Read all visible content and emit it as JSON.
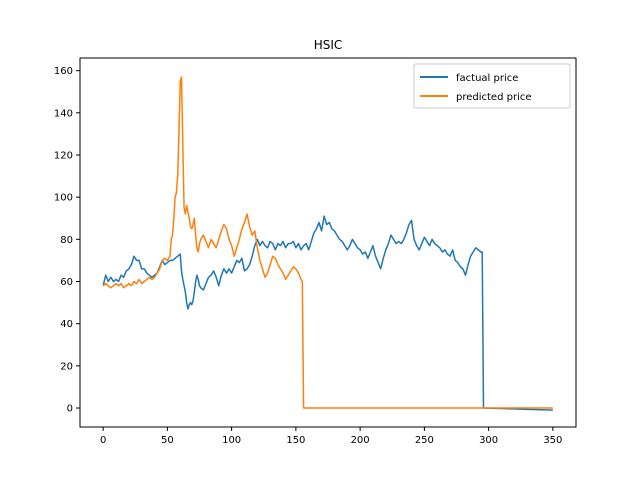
{
  "chart_data": {
    "type": "line",
    "title": "HSIC",
    "xlabel": "",
    "ylabel": "",
    "xlim": [
      -18,
      368
    ],
    "ylim": [
      -9,
      166
    ],
    "xticks": [
      0,
      50,
      100,
      150,
      200,
      250,
      300,
      350
    ],
    "yticks": [
      0,
      20,
      40,
      60,
      80,
      100,
      120,
      140,
      160
    ],
    "grid": false,
    "legend_position": "top-right",
    "series": [
      {
        "name": "factual price",
        "color": "#1f77b4",
        "points": [
          [
            0,
            58
          ],
          [
            2,
            63
          ],
          [
            4,
            60
          ],
          [
            6,
            62
          ],
          [
            8,
            60
          ],
          [
            10,
            61
          ],
          [
            12,
            60
          ],
          [
            14,
            63
          ],
          [
            16,
            62
          ],
          [
            18,
            65
          ],
          [
            20,
            66
          ],
          [
            22,
            68
          ],
          [
            24,
            72
          ],
          [
            26,
            70
          ],
          [
            28,
            70
          ],
          [
            30,
            66
          ],
          [
            32,
            66
          ],
          [
            34,
            64
          ],
          [
            36,
            63
          ],
          [
            38,
            62
          ],
          [
            40,
            63
          ],
          [
            42,
            64
          ],
          [
            44,
            67
          ],
          [
            46,
            70
          ],
          [
            48,
            68
          ],
          [
            50,
            69
          ],
          [
            52,
            70
          ],
          [
            54,
            70
          ],
          [
            56,
            71
          ],
          [
            58,
            72
          ],
          [
            60,
            73
          ],
          [
            61,
            65
          ],
          [
            62,
            61
          ],
          [
            63,
            58
          ],
          [
            64,
            55
          ],
          [
            65,
            50
          ],
          [
            66,
            47
          ],
          [
            67,
            49
          ],
          [
            68,
            50
          ],
          [
            69,
            49
          ],
          [
            70,
            51
          ],
          [
            71,
            55
          ],
          [
            72,
            60
          ],
          [
            73,
            63
          ],
          [
            74,
            61
          ],
          [
            75,
            58
          ],
          [
            76,
            57
          ],
          [
            78,
            56
          ],
          [
            80,
            59
          ],
          [
            82,
            62
          ],
          [
            84,
            63
          ],
          [
            86,
            65
          ],
          [
            88,
            62
          ],
          [
            90,
            58
          ],
          [
            92,
            63
          ],
          [
            94,
            66
          ],
          [
            96,
            64
          ],
          [
            98,
            66
          ],
          [
            100,
            64
          ],
          [
            102,
            67
          ],
          [
            104,
            70
          ],
          [
            106,
            69
          ],
          [
            108,
            71
          ],
          [
            110,
            65
          ],
          [
            112,
            66
          ],
          [
            114,
            68
          ],
          [
            116,
            72
          ],
          [
            118,
            77
          ],
          [
            120,
            80
          ],
          [
            122,
            77
          ],
          [
            124,
            79
          ],
          [
            126,
            77
          ],
          [
            128,
            76
          ],
          [
            130,
            79
          ],
          [
            132,
            78
          ],
          [
            134,
            75
          ],
          [
            136,
            78
          ],
          [
            138,
            77
          ],
          [
            140,
            79
          ],
          [
            142,
            76
          ],
          [
            144,
            78
          ],
          [
            146,
            78
          ],
          [
            148,
            79
          ],
          [
            150,
            76
          ],
          [
            152,
            78
          ],
          [
            154,
            75
          ],
          [
            156,
            77
          ],
          [
            158,
            78
          ],
          [
            160,
            75
          ],
          [
            162,
            79
          ],
          [
            164,
            83
          ],
          [
            166,
            85
          ],
          [
            168,
            88
          ],
          [
            170,
            84
          ],
          [
            172,
            91
          ],
          [
            174,
            87
          ],
          [
            176,
            88
          ],
          [
            178,
            85
          ],
          [
            180,
            84
          ],
          [
            182,
            82
          ],
          [
            184,
            80
          ],
          [
            186,
            79
          ],
          [
            188,
            77
          ],
          [
            190,
            75
          ],
          [
            192,
            77
          ],
          [
            194,
            80
          ],
          [
            196,
            78
          ],
          [
            198,
            76
          ],
          [
            200,
            75
          ],
          [
            202,
            73
          ],
          [
            204,
            74
          ],
          [
            206,
            71
          ],
          [
            208,
            74
          ],
          [
            210,
            77
          ],
          [
            212,
            72
          ],
          [
            214,
            69
          ],
          [
            216,
            66
          ],
          [
            218,
            71
          ],
          [
            220,
            75
          ],
          [
            222,
            78
          ],
          [
            224,
            82
          ],
          [
            226,
            80
          ],
          [
            228,
            78
          ],
          [
            230,
            79
          ],
          [
            232,
            78
          ],
          [
            234,
            80
          ],
          [
            236,
            83
          ],
          [
            238,
            87
          ],
          [
            240,
            89
          ],
          [
            242,
            80
          ],
          [
            244,
            77
          ],
          [
            246,
            75
          ],
          [
            248,
            78
          ],
          [
            250,
            81
          ],
          [
            252,
            79
          ],
          [
            254,
            77
          ],
          [
            256,
            80
          ],
          [
            258,
            78
          ],
          [
            260,
            77
          ],
          [
            262,
            76
          ],
          [
            264,
            74
          ],
          [
            266,
            75
          ],
          [
            268,
            73
          ],
          [
            270,
            72
          ],
          [
            272,
            75
          ],
          [
            274,
            70
          ],
          [
            276,
            69
          ],
          [
            278,
            67
          ],
          [
            280,
            66
          ],
          [
            282,
            63
          ],
          [
            284,
            68
          ],
          [
            286,
            72
          ],
          [
            288,
            74
          ],
          [
            290,
            76
          ],
          [
            292,
            75
          ],
          [
            294,
            74
          ],
          [
            295,
            74
          ],
          [
            296,
            0
          ],
          [
            350,
            -1
          ]
        ]
      },
      {
        "name": "predicted price",
        "color": "#ff7f0e",
        "points": [
          [
            0,
            58
          ],
          [
            2,
            59
          ],
          [
            4,
            58
          ],
          [
            6,
            57
          ],
          [
            8,
            58
          ],
          [
            10,
            59
          ],
          [
            12,
            58
          ],
          [
            14,
            59
          ],
          [
            16,
            57
          ],
          [
            18,
            58
          ],
          [
            20,
            59
          ],
          [
            22,
            58
          ],
          [
            24,
            60
          ],
          [
            26,
            59
          ],
          [
            28,
            61
          ],
          [
            30,
            59
          ],
          [
            32,
            60
          ],
          [
            34,
            61
          ],
          [
            36,
            62
          ],
          [
            38,
            61
          ],
          [
            40,
            62
          ],
          [
            42,
            64
          ],
          [
            44,
            66
          ],
          [
            46,
            70
          ],
          [
            48,
            71
          ],
          [
            50,
            70
          ],
          [
            52,
            72
          ],
          [
            53,
            80
          ],
          [
            54,
            82
          ],
          [
            55,
            90
          ],
          [
            56,
            100
          ],
          [
            57,
            102
          ],
          [
            58,
            110
          ],
          [
            59,
            130
          ],
          [
            60,
            155
          ],
          [
            61,
            157
          ],
          [
            62,
            125
          ],
          [
            63,
            95
          ],
          [
            64,
            92
          ],
          [
            65,
            96
          ],
          [
            66,
            93
          ],
          [
            67,
            90
          ],
          [
            68,
            86
          ],
          [
            69,
            85
          ],
          [
            70,
            87
          ],
          [
            71,
            90
          ],
          [
            72,
            82
          ],
          [
            73,
            76
          ],
          [
            74,
            74
          ],
          [
            75,
            78
          ],
          [
            76,
            80
          ],
          [
            78,
            82
          ],
          [
            80,
            79
          ],
          [
            82,
            76
          ],
          [
            84,
            80
          ],
          [
            86,
            78
          ],
          [
            88,
            76
          ],
          [
            90,
            80
          ],
          [
            92,
            84
          ],
          [
            94,
            87
          ],
          [
            96,
            85
          ],
          [
            98,
            80
          ],
          [
            100,
            77
          ],
          [
            102,
            72
          ],
          [
            104,
            76
          ],
          [
            106,
            80
          ],
          [
            108,
            85
          ],
          [
            110,
            88
          ],
          [
            112,
            92
          ],
          [
            114,
            86
          ],
          [
            116,
            82
          ],
          [
            118,
            84
          ],
          [
            120,
            76
          ],
          [
            122,
            70
          ],
          [
            124,
            66
          ],
          [
            126,
            62
          ],
          [
            128,
            64
          ],
          [
            130,
            68
          ],
          [
            132,
            72
          ],
          [
            134,
            71
          ],
          [
            136,
            68
          ],
          [
            138,
            66
          ],
          [
            140,
            64
          ],
          [
            142,
            61
          ],
          [
            144,
            63
          ],
          [
            146,
            65
          ],
          [
            148,
            67
          ],
          [
            150,
            66
          ],
          [
            152,
            64
          ],
          [
            154,
            61
          ],
          [
            155,
            60
          ],
          [
            156,
            0
          ],
          [
            350,
            0
          ]
        ]
      }
    ]
  }
}
